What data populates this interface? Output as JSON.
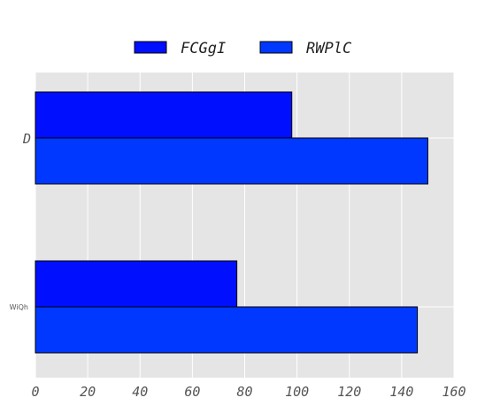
{
  "chart_data": {
    "type": "bar",
    "orientation": "horizontal",
    "categories": [
      "D",
      "WiQh"
    ],
    "series": [
      {
        "name": "FCGgI",
        "values": [
          98,
          77
        ],
        "color": "#0010ff"
      },
      {
        "name": "RWPlC",
        "values": [
          150,
          146
        ],
        "color": "#0038ff"
      }
    ],
    "xlim": [
      0,
      160
    ],
    "xticks": [
      0,
      20,
      40,
      60,
      80,
      100,
      120,
      140,
      160
    ],
    "grid": true,
    "legend_position": "top-center",
    "background": "#e5e5e5",
    "grid_color": "#ffffff",
    "edge_color": "#000000"
  }
}
